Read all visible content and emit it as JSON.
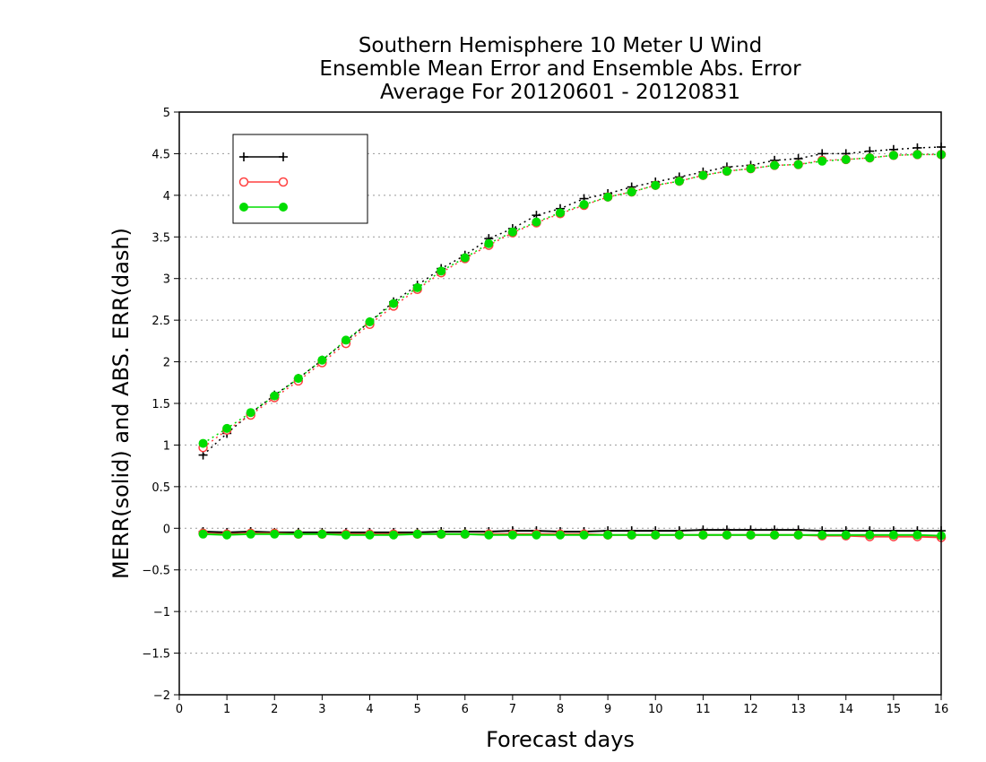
{
  "chart_data": {
    "type": "line",
    "title": "Southern Hemisphere 10 Meter U Wind",
    "subtitle": "Ensemble Mean Error and Ensemble Abs. Error",
    "subtitle2": "Average For 20120601 - 20120831",
    "xlabel": "Forecast days",
    "ylabel": "MERR(solid) and ABS. ERR(dash)",
    "xlim": [
      0,
      16
    ],
    "ylim": [
      -2,
      5
    ],
    "xticks": [
      0,
      1,
      2,
      3,
      4,
      5,
      6,
      7,
      8,
      9,
      10,
      11,
      12,
      13,
      14,
      15,
      16
    ],
    "yticks": [
      5,
      4.5,
      4,
      3.5,
      3,
      2.5,
      2,
      1.5,
      1,
      0.5,
      0,
      -0.5,
      -1,
      -1.5,
      -2
    ],
    "ytick_labels": [
      "5",
      "4.5",
      "4",
      "3.5",
      "3",
      "2.5",
      "2",
      "1.5",
      "1",
      "0.5",
      "0",
      "−0.5",
      "−1",
      "−1.5",
      "−2"
    ],
    "grid": "horizontal dotted",
    "legend_position": "top-left",
    "x": [
      0.5,
      1,
      1.5,
      2,
      2.5,
      3,
      3.5,
      4,
      4.5,
      5,
      5.5,
      6,
      6.5,
      7,
      7.5,
      8,
      8.5,
      9,
      9.5,
      10,
      10.5,
      11,
      11.5,
      12,
      12.5,
      13,
      13.5,
      14,
      14.5,
      15,
      15.5,
      16
    ],
    "series": [
      {
        "legend": "",
        "color": "#000000",
        "marker": "plus",
        "abs_error": [
          0.88,
          1.14,
          1.38,
          1.6,
          1.8,
          2.02,
          2.25,
          2.48,
          2.72,
          2.92,
          3.12,
          3.28,
          3.48,
          3.6,
          3.76,
          3.84,
          3.96,
          4.02,
          4.1,
          4.16,
          4.22,
          4.28,
          4.34,
          4.36,
          4.42,
          4.44,
          4.5,
          4.5,
          4.53,
          4.55,
          4.57,
          4.58
        ],
        "mean_error": [
          -0.04,
          -0.05,
          -0.04,
          -0.05,
          -0.05,
          -0.05,
          -0.05,
          -0.05,
          -0.05,
          -0.05,
          -0.04,
          -0.04,
          -0.04,
          -0.03,
          -0.03,
          -0.04,
          -0.04,
          -0.03,
          -0.03,
          -0.03,
          -0.03,
          -0.02,
          -0.02,
          -0.02,
          -0.02,
          -0.02,
          -0.03,
          -0.03,
          -0.03,
          -0.03,
          -0.03,
          -0.03
        ]
      },
      {
        "legend": "",
        "color": "#ff4040",
        "marker": "open-circle",
        "abs_error": [
          0.97,
          1.18,
          1.36,
          1.57,
          1.77,
          1.99,
          2.22,
          2.45,
          2.67,
          2.87,
          3.07,
          3.24,
          3.4,
          3.55,
          3.67,
          3.78,
          3.88,
          3.98,
          4.04,
          4.12,
          4.17,
          4.24,
          4.29,
          4.32,
          4.36,
          4.37,
          4.42,
          4.43,
          4.45,
          4.48,
          4.49,
          4.49
        ],
        "mean_error": [
          -0.06,
          -0.07,
          -0.06,
          -0.06,
          -0.07,
          -0.07,
          -0.07,
          -0.07,
          -0.07,
          -0.07,
          -0.07,
          -0.07,
          -0.07,
          -0.07,
          -0.07,
          -0.07,
          -0.07,
          -0.08,
          -0.08,
          -0.08,
          -0.08,
          -0.08,
          -0.08,
          -0.08,
          -0.08,
          -0.08,
          -0.09,
          -0.09,
          -0.1,
          -0.1,
          -0.1,
          -0.11
        ]
      },
      {
        "legend": "",
        "color": "#00dd00",
        "marker": "filled-circle",
        "abs_error": [
          1.02,
          1.2,
          1.39,
          1.59,
          1.8,
          2.02,
          2.26,
          2.48,
          2.7,
          2.89,
          3.09,
          3.25,
          3.42,
          3.56,
          3.68,
          3.79,
          3.89,
          3.98,
          4.04,
          4.12,
          4.17,
          4.24,
          4.29,
          4.32,
          4.36,
          4.37,
          4.41,
          4.43,
          4.45,
          4.48,
          4.49,
          4.49
        ],
        "mean_error": [
          -0.07,
          -0.08,
          -0.07,
          -0.07,
          -0.07,
          -0.07,
          -0.08,
          -0.08,
          -0.08,
          -0.07,
          -0.07,
          -0.07,
          -0.08,
          -0.08,
          -0.08,
          -0.08,
          -0.08,
          -0.08,
          -0.08,
          -0.08,
          -0.08,
          -0.08,
          -0.08,
          -0.08,
          -0.08,
          -0.08,
          -0.08,
          -0.08,
          -0.08,
          -0.08,
          -0.08,
          -0.09
        ]
      }
    ]
  }
}
